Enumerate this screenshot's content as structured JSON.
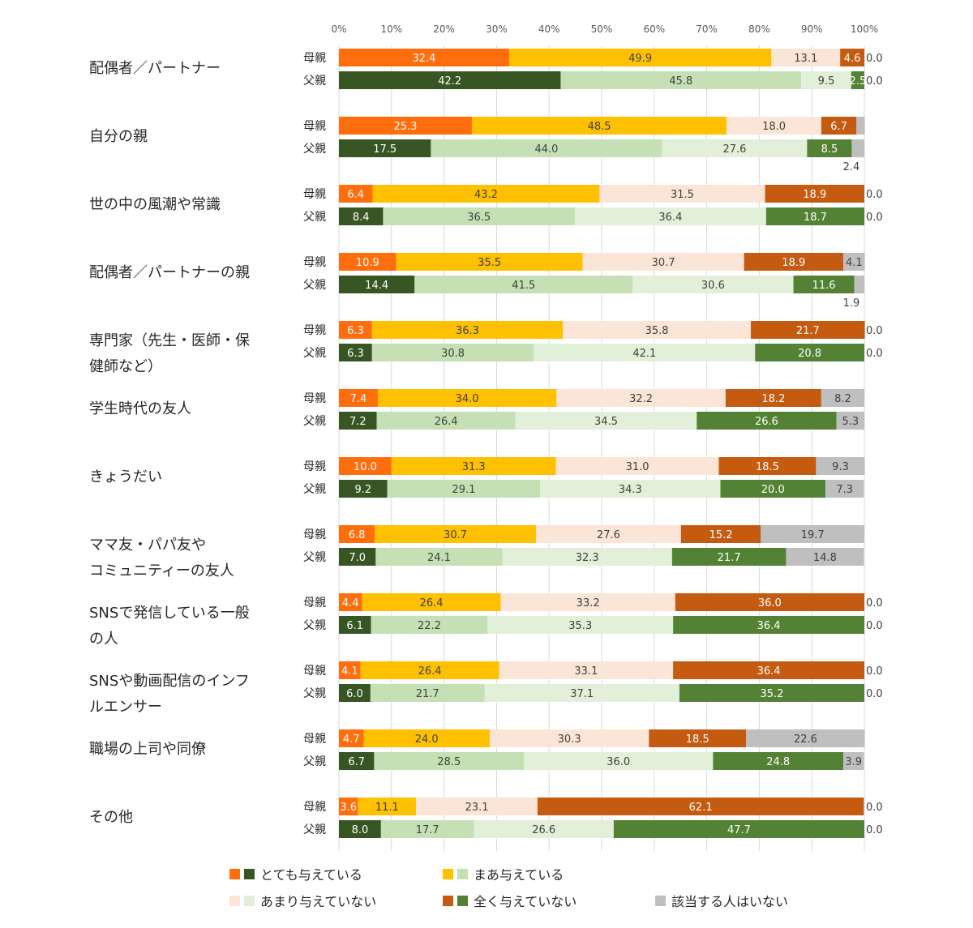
{
  "chart_data": {
    "type": "bar",
    "orientation": "horizontal",
    "stacked": "percent",
    "xlim": [
      0,
      100
    ],
    "x_ticks": [
      "0%",
      "10%",
      "20%",
      "30%",
      "40%",
      "50%",
      "60%",
      "70%",
      "80%",
      "90%",
      "100%"
    ],
    "grid": true,
    "legend_position": "bottom",
    "subgroups": [
      "母親",
      "父親"
    ],
    "categories": [
      [
        "配偶者／パートナー"
      ],
      [
        "自分の親"
      ],
      [
        "世の中の風潮や常識"
      ],
      [
        "配偶者／パートナーの親"
      ],
      [
        "専門家（先生・医師・保",
        "健師など）"
      ],
      [
        "学生時代の友人"
      ],
      [
        "きょうだい"
      ],
      [
        "ママ友・パパ友や",
        "コミュニティーの友人"
      ],
      [
        "SNSで発信している一般",
        "の人"
      ],
      [
        "SNSや動画配信のインフ",
        "ルエンサー"
      ],
      [
        "職場の上司や同僚"
      ],
      [
        "その他"
      ]
    ],
    "series": [
      {
        "name": "とても与えている",
        "colors": {
          "母親": "#ff6d0d",
          "父親": "#375623"
        },
        "values": {
          "母親": [
            32.4,
            25.3,
            6.4,
            10.9,
            6.3,
            7.4,
            10.0,
            6.8,
            4.4,
            4.1,
            4.7,
            3.6
          ],
          "父親": [
            42.2,
            17.5,
            8.4,
            14.4,
            6.3,
            7.2,
            9.2,
            7.0,
            6.1,
            6.0,
            6.7,
            8.0
          ]
        }
      },
      {
        "name": "まあ与えている",
        "colors": {
          "母親": "#ffc000",
          "父親": "#c5e0b4"
        },
        "values": {
          "母親": [
            49.9,
            48.5,
            43.2,
            35.5,
            36.3,
            34.0,
            31.3,
            30.7,
            26.4,
            26.4,
            24.0,
            11.1
          ],
          "父親": [
            45.8,
            44.0,
            36.5,
            41.5,
            30.8,
            26.4,
            29.1,
            24.1,
            22.2,
            21.7,
            28.5,
            17.7
          ]
        }
      },
      {
        "name": "あまり与えていない",
        "colors": {
          "母親": "#fbe5d6",
          "父親": "#e2f0d9"
        },
        "values": {
          "母親": [
            13.1,
            18.0,
            31.5,
            30.7,
            35.8,
            32.2,
            31.0,
            27.6,
            33.2,
            33.1,
            30.3,
            23.1
          ],
          "父親": [
            9.5,
            27.6,
            36.4,
            30.6,
            42.1,
            34.5,
            34.3,
            32.3,
            35.3,
            37.1,
            36.0,
            26.6
          ]
        }
      },
      {
        "name": "全く与えていない",
        "colors": {
          "母親": "#c55a11",
          "父親": "#548235"
        },
        "values": {
          "母親": [
            4.6,
            6.7,
            18.9,
            18.9,
            21.7,
            18.2,
            18.5,
            15.2,
            36.0,
            36.4,
            18.5,
            62.1
          ],
          "父親": [
            2.5,
            8.5,
            18.7,
            11.6,
            20.8,
            26.6,
            20.0,
            21.7,
            36.4,
            35.2,
            24.8,
            47.7
          ]
        }
      },
      {
        "name": "該当する人はいない",
        "colors": {
          "母親": "#bfbfbf",
          "父親": "#bfbfbf"
        },
        "values": {
          "母親": [
            0.0,
            1.6,
            0.0,
            4.1,
            0.0,
            8.2,
            9.3,
            19.7,
            0.0,
            0.0,
            22.6,
            0.0
          ],
          "父親": [
            0.0,
            2.4,
            0.0,
            1.9,
            0.0,
            5.3,
            7.3,
            14.8,
            0.0,
            0.0,
            3.9,
            0.0
          ]
        }
      }
    ]
  }
}
